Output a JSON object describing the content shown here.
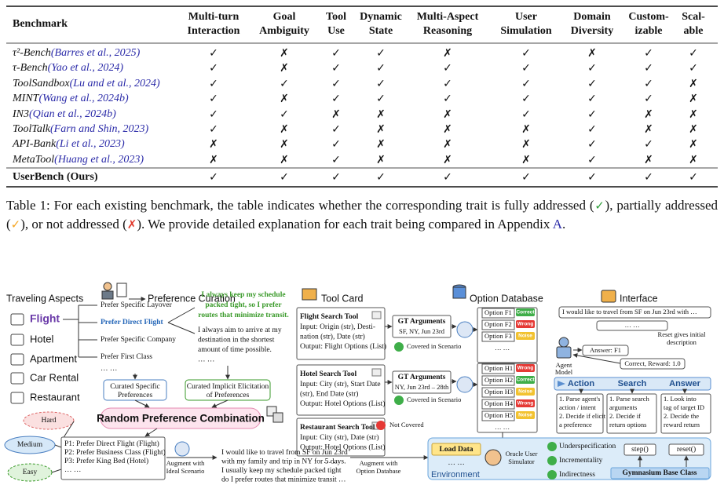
{
  "table": {
    "header": {
      "benchmark": "Benchmark",
      "traits": [
        [
          "Multi-turn",
          "Interaction"
        ],
        [
          "Goal",
          "Ambiguity"
        ],
        [
          "Tool",
          "Use"
        ],
        [
          "Dynamic",
          "State"
        ],
        [
          "Multi-Aspect",
          "Reasoning"
        ],
        [
          "User",
          "Simulation"
        ],
        [
          "Domain",
          "Diversity"
        ],
        [
          "Custom-",
          "izable"
        ],
        [
          "Scal-",
          "able"
        ]
      ]
    },
    "marks": {
      "full": {
        "symbol": "✓",
        "color": "#2e9e3a"
      },
      "partial": {
        "symbol": "✓",
        "color": "#f5a623"
      },
      "none": {
        "symbol": "✗",
        "color": "#e23b2e"
      }
    },
    "rows": [
      {
        "name": "τ²-Bench",
        "cite": "(Barres et al., 2025)",
        "cells": [
          "full",
          "none",
          "full",
          "full",
          "none",
          "full",
          "none",
          "partial",
          "partial"
        ]
      },
      {
        "name": "τ-Bench",
        "cite": "(Yao et al., 2024)",
        "cells": [
          "full",
          "none",
          "full",
          "full",
          "partial",
          "full",
          "partial",
          "partial",
          "partial"
        ]
      },
      {
        "name": "ToolSandbox",
        "cite": "(Lu and et al., 2024)",
        "cells": [
          "full",
          "partial",
          "full",
          "full",
          "partial",
          "full",
          "partial",
          "partial",
          "none"
        ]
      },
      {
        "name": "MINT",
        "cite": "(Wang et al., 2024b)",
        "cells": [
          "full",
          "none",
          "full",
          "full",
          "partial",
          "full",
          "partial",
          "partial",
          "none"
        ]
      },
      {
        "name": "IN3",
        "cite": "(Qian et al., 2024b)",
        "cells": [
          "full",
          "full",
          "none",
          "none",
          "none",
          "full",
          "partial",
          "none",
          "none"
        ]
      },
      {
        "name": "ToolTalk",
        "cite": "(Farn and Shin, 2023)",
        "cells": [
          "partial",
          "none",
          "full",
          "none",
          "none",
          "none",
          "partial",
          "none",
          "none"
        ]
      },
      {
        "name": "API-Bank",
        "cite": "(Li et al., 2023)",
        "cells": [
          "none",
          "none",
          "full",
          "none",
          "none",
          "none",
          "partial",
          "partial",
          "none"
        ]
      },
      {
        "name": "MetaTool",
        "cite": "(Huang et al., 2023)",
        "cells": [
          "none",
          "none",
          "full",
          "none",
          "none",
          "none",
          "partial",
          "none",
          "none"
        ]
      }
    ],
    "ours": {
      "name": "UserBench (Ours)",
      "cells": [
        "full",
        "full",
        "full",
        "full",
        "full",
        "full",
        "full",
        "full",
        "full"
      ]
    }
  },
  "caption": [
    {
      "text": "Table 1: For each existing benchmark, the table indicates whether the corresponding trait is fully addressed ("
    },
    {
      "mark": "full"
    },
    {
      "text": "), partially addressed ("
    },
    {
      "mark": "partial"
    },
    {
      "text": "), or not addressed ("
    },
    {
      "mark": "none"
    },
    {
      "text": "). We provide detailed explanation for each trait being compared in Appendix "
    },
    {
      "text": "A",
      "link": true
    },
    {
      "text": "."
    }
  ],
  "figure": {
    "sections": {
      "aspects": "Traveling Aspects",
      "curation": "Preference Curation",
      "tools": "Tool Card",
      "options": "Option Database",
      "interface": "Interface"
    },
    "aspects": [
      "Flight",
      "Hotel",
      "Apartment",
      "Car Rental",
      "Restaurant"
    ],
    "preferences": [
      "Prefer Specific Layover",
      "Prefer Direct Flight",
      "Prefer Specific Company",
      "Prefer First Class",
      "… …"
    ],
    "implicit_quote": [
      "I always keep my schedule",
      "packed tight, so I prefer",
      "routes that minimize transit."
    ],
    "implicit_other": [
      "I always aim to arrive at my",
      "destination in the shortest",
      "amount of time possible.",
      "… …"
    ],
    "curated_specific": [
      "Curated Specific",
      "Preferences"
    ],
    "curated_implicit": [
      "Curated Implicit Elicitation",
      "of Preferences"
    ],
    "combination": "Random Preference Combination",
    "difficulty": [
      "Hard",
      "Medium",
      "Easy"
    ],
    "combo_list": [
      "P1: Prefer Direct Flight (Flight)",
      "P2: Prefer Business Class (Flight)",
      "P3: Prefer King Bed (Hotel)",
      "… …"
    ],
    "augment_ideal": [
      "Augment with",
      "Ideal Scenario"
    ],
    "scenario": [
      "I would like to travel from SF on Jun 23rd",
      "with my family and trip in NY for 5 days.",
      "I usually keep my schedule packed tight",
      "do I prefer routes that minimize transit …"
    ],
    "augment_db": [
      "Augment with",
      "Option Database"
    ],
    "tool_cards": [
      {
        "title": "Flight Search Tool",
        "lines": [
          "Input: Origin (str), Desti-",
          "nation (str), Date (str)",
          "Output: Flight Options (List)"
        ]
      },
      {
        "title": "Hotel Search Tool",
        "lines": [
          "Input: City (str), Start Date",
          "(str), End Date (str)",
          "Output: Hotel Options (List)"
        ]
      },
      {
        "title": "Restaurant Search Tool",
        "lines": [
          "Input: City (str), Date (str)",
          "Output: Hotel Options (List)"
        ]
      }
    ],
    "tool_more": "… …",
    "gt": [
      {
        "title": "GT Arguments",
        "args": "SF, NY, Jun 23rd"
      },
      {
        "title": "GT Arguments",
        "args": "NY, Jun 23rd – 28th"
      }
    ],
    "coverage": [
      "Covered in Scenario",
      "Covered in Scenario",
      "Not Covered"
    ],
    "tag_colors": {
      "Correct": "#3fae49",
      "Wrong": "#e53935",
      "Noise": "#f2c230"
    },
    "option_groups": [
      {
        "options": [
          {
            "name": "Option F1",
            "tag": "Correct"
          },
          {
            "name": "Option F2",
            "tag": "Wrong"
          },
          {
            "name": "Option F3",
            "tag": "Noise"
          }
        ],
        "more": "… …"
      },
      {
        "options": [
          {
            "name": "Option H1",
            "tag": "Wrong"
          },
          {
            "name": "Option H2",
            "tag": "Correct"
          },
          {
            "name": "Option H3",
            "tag": "Noise"
          },
          {
            "name": "Option H4",
            "tag": "Wrong"
          },
          {
            "name": "Option H5",
            "tag": "Noise"
          }
        ],
        "more": "… …"
      }
    ],
    "interface": {
      "prompt": "I would like to travel from SF on Jun 23rd with …",
      "more": "… …",
      "reset_note": [
        "Reset gives initial",
        "description"
      ],
      "agent": [
        "Agent",
        "Model"
      ],
      "answer": "Answer: F1",
      "reward": "Correct, Reward: 1.0",
      "tabs": [
        "Action",
        "Search",
        "Answer"
      ],
      "boxes": [
        [
          "1. Parse agent's",
          "action / intent",
          "2. Decide if elicit",
          "a preference"
        ],
        [
          "1. Parse search",
          "arguments",
          "2. Decide if",
          "return options"
        ],
        [
          "1. Look into",
          "tag of target ID",
          "2. Decide the",
          "reward return"
        ]
      ]
    },
    "environment": {
      "load": "Load Data",
      "more": "… …",
      "label": "Environment",
      "oracle": [
        "Oracle User",
        "Simulator"
      ],
      "checks": [
        "Underspecification",
        "Incrementality",
        "Indirectness"
      ],
      "step": "step()",
      "reset": "reset()",
      "base": "Gymnasium Base Class"
    }
  }
}
